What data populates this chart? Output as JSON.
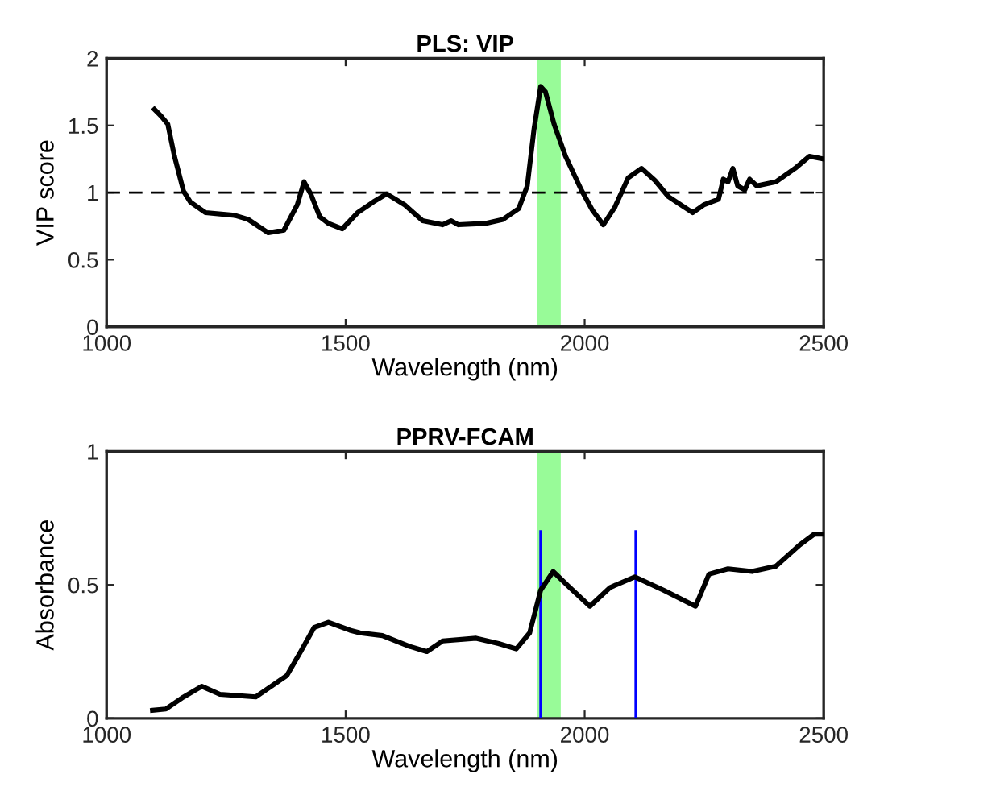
{
  "chart_data": [
    {
      "type": "line",
      "title": "PLS: VIP",
      "xlabel": "Wavelength (nm)",
      "ylabel": "VIP score",
      "xlim": [
        1000,
        2500
      ],
      "xticks": [
        1000,
        1500,
        2000,
        2500
      ],
      "ylim": [
        0,
        2
      ],
      "yticks": [
        0,
        0.5,
        1,
        1.5,
        2
      ],
      "grid": false,
      "legend": false,
      "series": [
        {
          "color": "#000000",
          "x": [
            1100,
            1114,
            1128,
            1142,
            1161,
            1175,
            1207,
            1268,
            1296,
            1338,
            1371,
            1399,
            1413,
            1427,
            1446,
            1464,
            1493,
            1525,
            1558,
            1586,
            1623,
            1661,
            1703,
            1721,
            1736,
            1792,
            1829,
            1862,
            1880,
            1894,
            1908,
            1918,
            1936,
            1960,
            1993,
            2016,
            2039,
            2063,
            2091,
            2119,
            2147,
            2175,
            2226,
            2250,
            2280,
            2290,
            2300,
            2310,
            2320,
            2335,
            2345,
            2360,
            2400,
            2440,
            2470,
            2500
          ],
          "values": [
            1.62,
            1.57,
            1.51,
            1.27,
            1.01,
            0.93,
            0.85,
            0.83,
            0.8,
            0.7,
            0.72,
            0.91,
            1.08,
            0.99,
            0.82,
            0.77,
            0.73,
            0.85,
            0.93,
            0.99,
            0.91,
            0.79,
            0.76,
            0.79,
            0.76,
            0.77,
            0.8,
            0.88,
            1.05,
            1.47,
            1.79,
            1.75,
            1.51,
            1.27,
            1.02,
            0.87,
            0.76,
            0.89,
            1.11,
            1.18,
            1.09,
            0.97,
            0.85,
            0.91,
            0.95,
            1.1,
            1.08,
            1.18,
            1.05,
            1.02,
            1.1,
            1.05,
            1.08,
            1.18,
            1.27,
            1.25
          ]
        }
      ],
      "ref_lines": [
        {
          "axis": "y",
          "value": 1,
          "color": "#000000",
          "line_style": "dashed"
        }
      ],
      "bands": [
        {
          "axis": "x",
          "from": 1900,
          "to": 1950,
          "color": "#98fb98"
        }
      ]
    },
    {
      "type": "line",
      "title": "PPRV-FCAM",
      "xlabel": "Wavelength (nm)",
      "ylabel": "Absorbance",
      "xlim": [
        1000,
        2500
      ],
      "xticks": [
        1000,
        1500,
        2000,
        2500
      ],
      "ylim": [
        0,
        1
      ],
      "yticks": [
        0,
        0.5,
        1
      ],
      "grid": false,
      "legend": false,
      "series": [
        {
          "color": "#000000",
          "x": [
            1096,
            1124,
            1161,
            1199,
            1237,
            1312,
            1377,
            1406,
            1434,
            1464,
            1509,
            1530,
            1577,
            1633,
            1670,
            1703,
            1773,
            1820,
            1857,
            1885,
            1908,
            1934,
            1969,
            2011,
            2053,
            2105,
            2165,
            2232,
            2260,
            2300,
            2350,
            2400,
            2450,
            2480,
            2500
          ],
          "values": [
            0.03,
            0.035,
            0.08,
            0.12,
            0.09,
            0.08,
            0.16,
            0.25,
            0.34,
            0.36,
            0.33,
            0.32,
            0.31,
            0.27,
            0.25,
            0.29,
            0.3,
            0.28,
            0.26,
            0.32,
            0.48,
            0.55,
            0.49,
            0.42,
            0.49,
            0.53,
            0.48,
            0.42,
            0.54,
            0.56,
            0.55,
            0.57,
            0.65,
            0.69,
            0.69
          ]
        },
        {
          "color": "#0000ff",
          "x": [
            1908,
            1908
          ],
          "values": [
            0,
            0.7
          ]
        },
        {
          "color": "#0000ff",
          "x": [
            2107,
            2107
          ],
          "values": [
            0,
            0.7
          ]
        }
      ],
      "bands": [
        {
          "axis": "x",
          "from": 1900,
          "to": 1950,
          "color": "#98fb98"
        }
      ]
    }
  ]
}
